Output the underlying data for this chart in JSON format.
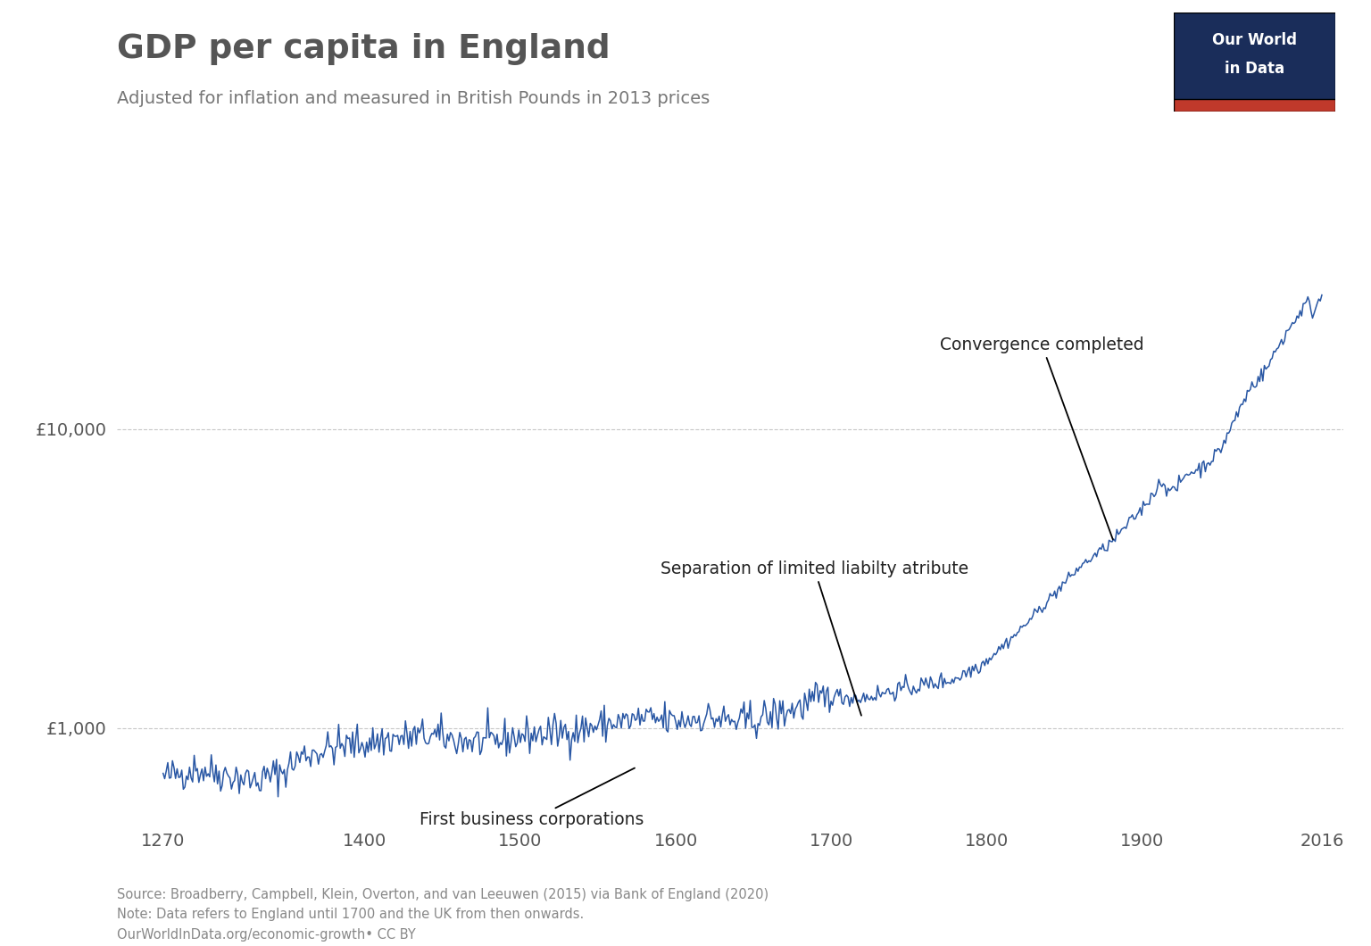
{
  "title": "GDP per capita in England",
  "subtitle": "Adjusted for inflation and measured in British Pounds in 2013 prices",
  "source_text": "Source: Broadberry, Campbell, Klein, Overton, and van Leeuwen (2015) via Bank of England (2020)\nNote: Data refers to England until 1700 and the UK from then onwards.\nOurWorldInData.org/economic-growth• CC BY",
  "line_color": "#2957A4",
  "background_color": "#FFFFFF",
  "grid_color": "#C8C8C8",
  "title_color": "#555555",
  "subtitle_color": "#777777",
  "annotation_color": "#222222",
  "owid_box": {
    "bg_color": "#1a2d5a",
    "accent_color": "#c0392b",
    "text_color": "#FFFFFF"
  }
}
